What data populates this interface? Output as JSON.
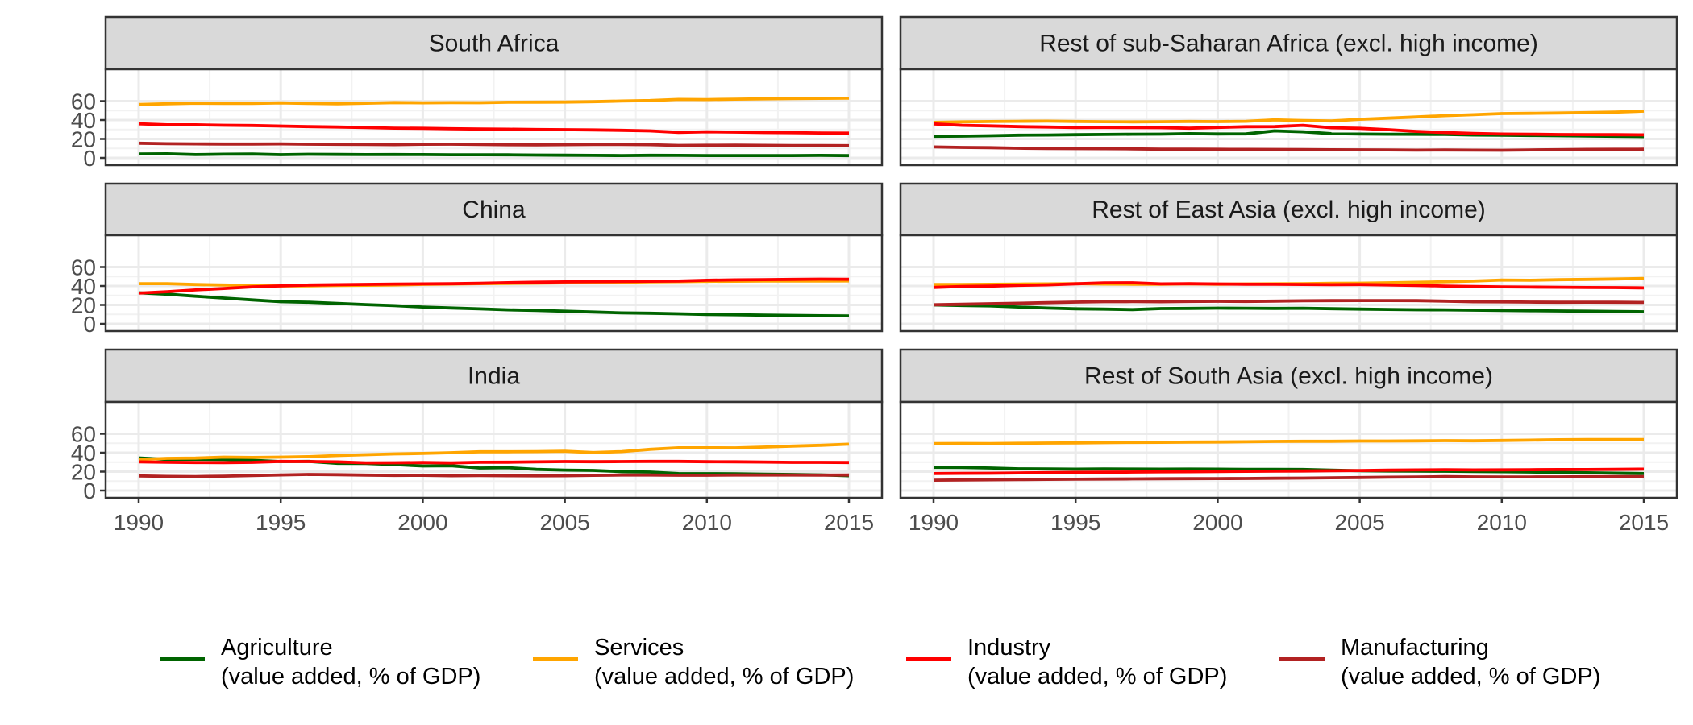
{
  "chart_data": {
    "type": "line",
    "layout": "facet-grid",
    "xlim": [
      1990,
      2015
    ],
    "ylim": [
      0,
      60
    ],
    "x_ticks": [
      1990,
      1995,
      2000,
      2005,
      2010,
      2015
    ],
    "y_ticks": [
      0,
      20,
      40,
      60
    ],
    "grid": true,
    "legend_position": "bottom",
    "series_meta": [
      {
        "key": "agriculture",
        "label_line1": "Agriculture",
        "label_line2": "(value added, % of GDP)",
        "color": "#006400"
      },
      {
        "key": "services",
        "label_line1": "Services",
        "label_line2": "(value added, % of GDP)",
        "color": "#FFA500"
      },
      {
        "key": "industry",
        "label_line1": "Industry",
        "label_line2": "(value added, % of GDP)",
        "color": "#FF0000"
      },
      {
        "key": "manufacturing",
        "label_line1": "Manufacturing",
        "label_line2": "(value added, % of GDP)",
        "color": "#B22222"
      }
    ],
    "x": [
      1990,
      1991,
      1992,
      1993,
      1994,
      1995,
      1996,
      1997,
      1998,
      1999,
      2000,
      2001,
      2002,
      2003,
      2004,
      2005,
      2006,
      2007,
      2008,
      2009,
      2010,
      2011,
      2012,
      2013,
      2014,
      2015
    ],
    "panels": [
      {
        "title": "South Africa",
        "series": {
          "agriculture": [
            4.2,
            4.3,
            3.5,
            3.9,
            4.1,
            3.4,
            3.8,
            3.7,
            3.5,
            3.6,
            3.5,
            3.3,
            3.3,
            3.2,
            3.0,
            2.8,
            2.6,
            2.5,
            2.7,
            2.6,
            2.5,
            2.5,
            2.5,
            2.5,
            2.6,
            2.4
          ],
          "services": [
            56.5,
            57.2,
            57.8,
            57.5,
            57.6,
            58.1,
            57.5,
            57.2,
            57.8,
            58.5,
            58.2,
            58.4,
            58.3,
            58.8,
            58.9,
            59.0,
            59.4,
            60.1,
            60.6,
            61.8,
            61.6,
            62.0,
            62.4,
            62.6,
            62.9,
            63.1
          ],
          "industry": [
            36.0,
            35.0,
            35.0,
            34.5,
            34.2,
            33.6,
            33.0,
            32.6,
            32.0,
            31.4,
            31.2,
            30.8,
            30.5,
            30.3,
            30.0,
            29.8,
            29.5,
            29.1,
            28.5,
            27.0,
            27.6,
            27.2,
            26.8,
            26.6,
            26.3,
            26.1
          ],
          "manufacturing": [
            15.5,
            15.0,
            14.8,
            14.6,
            14.6,
            14.8,
            14.5,
            14.3,
            14.1,
            14.0,
            14.4,
            14.5,
            14.2,
            13.9,
            13.8,
            14.0,
            14.1,
            14.2,
            14.0,
            13.2,
            13.4,
            13.5,
            13.3,
            13.1,
            13.0,
            12.9
          ]
        }
      },
      {
        "title": "Rest of sub-Saharan Africa (excl. high income)",
        "series": {
          "agriculture": [
            22.8,
            23.0,
            23.4,
            24.0,
            24.2,
            24.5,
            24.8,
            25.0,
            25.1,
            25.6,
            25.3,
            25.4,
            28.5,
            27.6,
            25.6,
            25.2,
            25.0,
            24.9,
            24.8,
            24.2,
            23.9,
            23.7,
            23.4,
            23.1,
            22.8,
            22.5
          ],
          "services": [
            37.5,
            38.0,
            38.4,
            38.6,
            38.8,
            38.5,
            38.2,
            38.0,
            38.2,
            38.5,
            38.3,
            38.6,
            40.2,
            39.5,
            39.0,
            40.8,
            42.0,
            43.2,
            44.6,
            45.6,
            46.8,
            47.1,
            47.4,
            47.8,
            48.3,
            49.4
          ],
          "industry": [
            35.9,
            34.4,
            33.8,
            33.0,
            32.6,
            32.1,
            32.2,
            32.0,
            31.9,
            31.3,
            32.2,
            32.9,
            33.0,
            34.4,
            31.8,
            31.2,
            29.8,
            28.0,
            26.8,
            25.8,
            25.2,
            25.0,
            24.7,
            24.6,
            24.5,
            24.3
          ],
          "manufacturing": [
            11.6,
            11.1,
            10.8,
            10.2,
            10.0,
            9.8,
            9.7,
            9.5,
            9.2,
            9.2,
            9.1,
            9.0,
            8.9,
            8.8,
            8.6,
            8.5,
            8.4,
            8.2,
            8.3,
            8.2,
            8.1,
            8.4,
            8.7,
            9.0,
            9.1,
            9.2
          ]
        }
      },
      {
        "title": "China",
        "series": {
          "agriculture": [
            32.8,
            31.3,
            29.2,
            27.2,
            25.3,
            23.4,
            22.8,
            21.6,
            20.3,
            19.2,
            17.8,
            16.8,
            15.8,
            14.8,
            14.2,
            13.4,
            12.5,
            11.6,
            11.2,
            10.6,
            10.0,
            9.6,
            9.2,
            8.9,
            8.6,
            8.4
          ],
          "services": [
            42.5,
            42.5,
            41.5,
            41.0,
            40.5,
            40.0,
            40.2,
            40.5,
            40.8,
            41.1,
            41.7,
            42.0,
            42.5,
            42.7,
            43.0,
            43.3,
            43.6,
            44.0,
            44.3,
            44.6,
            44.9,
            45.0,
            45.2,
            45.3,
            45.3,
            45.4
          ],
          "industry": [
            32.4,
            34.0,
            35.8,
            37.4,
            39.1,
            40.1,
            41.0,
            41.4,
            41.7,
            42.0,
            42.2,
            42.4,
            42.8,
            43.5,
            44.0,
            44.3,
            44.6,
            44.8,
            45.0,
            45.2,
            46.0,
            46.5,
            46.7,
            47.0,
            47.2,
            47.1
          ]
        }
      },
      {
        "title": "Rest of East Asia (excl. high income)",
        "series": {
          "agriculture": [
            20.0,
            19.4,
            19.0,
            17.8,
            16.7,
            15.9,
            15.6,
            15.1,
            16.2,
            16.3,
            16.6,
            16.5,
            16.3,
            16.5,
            16.0,
            15.6,
            15.2,
            14.9,
            14.8,
            14.5,
            14.1,
            13.9,
            13.6,
            13.4,
            13.1,
            12.8
          ],
          "services": [
            41.5,
            41.5,
            41.8,
            42.0,
            42.2,
            42.5,
            42.0,
            41.9,
            41.8,
            42.3,
            41.9,
            42.1,
            42.3,
            42.5,
            42.8,
            43.0,
            43.4,
            43.9,
            44.5,
            45.2,
            46.3,
            46.0,
            46.6,
            47.0,
            47.4,
            48.0
          ],
          "industry": [
            38.5,
            39.5,
            39.8,
            40.7,
            41.2,
            42.3,
            43.3,
            43.4,
            42.2,
            42.4,
            42.1,
            41.9,
            41.8,
            41.6,
            41.4,
            41.5,
            41.1,
            40.6,
            39.9,
            39.4,
            39.1,
            38.8,
            38.6,
            38.4,
            38.3,
            38.0
          ],
          "manufacturing": [
            20.2,
            20.7,
            21.3,
            21.8,
            22.4,
            23.0,
            23.4,
            23.5,
            23.3,
            23.7,
            23.8,
            23.7,
            24.0,
            24.3,
            24.5,
            24.6,
            24.6,
            24.5,
            24.0,
            23.3,
            23.2,
            23.0,
            22.8,
            22.9,
            22.8,
            22.6
          ]
        }
      },
      {
        "title": "India",
        "series": {
          "agriculture": [
            34.5,
            32.9,
            33.1,
            32.9,
            32.0,
            30.6,
            30.8,
            28.8,
            28.6,
            27.5,
            26.0,
            26.2,
            23.8,
            24.2,
            22.4,
            21.6,
            21.3,
            20.0,
            19.6,
            18.0,
            17.9,
            17.8,
            17.3,
            17.0,
            16.6,
            15.7
          ],
          "services": [
            32.8,
            34.0,
            34.3,
            35.3,
            35.0,
            35.3,
            35.8,
            37.0,
            37.9,
            38.7,
            39.2,
            40.0,
            41.0,
            41.0,
            41.2,
            41.5,
            40.2,
            41.2,
            43.6,
            45.2,
            45.2,
            45.1,
            46.0,
            47.0,
            47.8,
            49.0
          ],
          "industry": [
            30.3,
            29.9,
            29.6,
            29.5,
            29.8,
            30.8,
            30.6,
            30.3,
            29.3,
            29.4,
            29.6,
            29.2,
            29.9,
            30.0,
            30.3,
            30.6,
            30.5,
            30.6,
            30.8,
            30.8,
            30.5,
            30.4,
            30.1,
            29.8,
            29.8,
            29.6
          ],
          "manufacturing": [
            15.5,
            15.0,
            14.8,
            15.2,
            15.8,
            16.5,
            17.0,
            16.8,
            16.3,
            16.0,
            16.1,
            15.7,
            15.8,
            15.7,
            15.6,
            15.7,
            16.1,
            16.4,
            16.4,
            16.2,
            16.2,
            16.4,
            16.4,
            16.4,
            16.3,
            16.4
          ]
        }
      },
      {
        "title": "Rest of South Asia (excl. high income)",
        "series": {
          "agriculture": [
            24.5,
            24.3,
            23.8,
            23.0,
            22.8,
            22.6,
            22.8,
            22.7,
            22.6,
            22.7,
            22.6,
            22.5,
            22.4,
            22.3,
            21.6,
            20.9,
            20.7,
            20.5,
            20.4,
            20.2,
            19.9,
            19.6,
            19.3,
            18.8,
            18.4,
            18.0
          ],
          "services": [
            49.6,
            49.8,
            49.6,
            50.0,
            50.2,
            50.4,
            50.6,
            50.9,
            51.0,
            51.2,
            51.3,
            51.6,
            51.9,
            52.1,
            52.1,
            52.3,
            52.3,
            52.5,
            52.8,
            52.6,
            52.9,
            53.3,
            53.7,
            53.9,
            53.9,
            53.9
          ],
          "industry": [
            18.0,
            18.2,
            18.3,
            18.6,
            18.9,
            19.2,
            19.4,
            19.6,
            19.8,
            19.9,
            20.1,
            20.3,
            20.5,
            20.7,
            20.9,
            21.2,
            21.5,
            21.8,
            22.0,
            21.8,
            21.9,
            22.0,
            22.2,
            22.2,
            22.4,
            22.6
          ],
          "manufacturing": [
            11.0,
            11.2,
            11.4,
            11.6,
            11.8,
            12.0,
            12.2,
            12.3,
            12.5,
            12.6,
            12.7,
            12.8,
            13.0,
            13.2,
            13.5,
            13.8,
            14.1,
            14.4,
            14.7,
            14.5,
            14.4,
            14.4,
            14.5,
            14.6,
            14.7,
            14.8
          ]
        }
      }
    ]
  }
}
